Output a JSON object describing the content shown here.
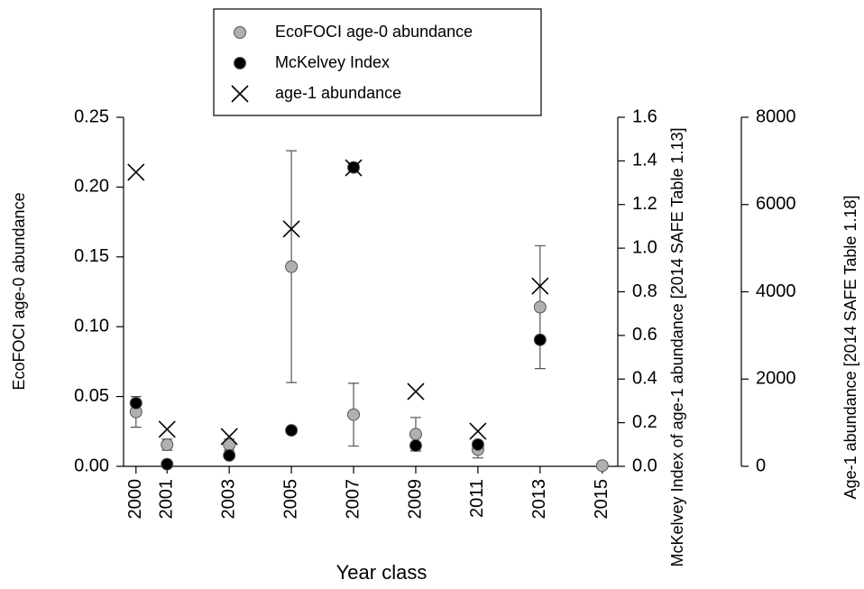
{
  "chart_data": {
    "type": "scatter",
    "xlabel": "Year class",
    "ylabel": "EcoFOCI age-0 abundance",
    "y2label": "McKelvey Index of age-1 abundance [2014 SAFE Table 1.13]",
    "y3label": "Age-1 abundance [2014 SAFE Table 1.18]",
    "x": [
      2000,
      2001,
      2003,
      2005,
      2007,
      2009,
      2011,
      2013,
      2015
    ],
    "xlim": [
      1999.6,
      2015.5
    ],
    "xticks": [
      2000,
      2001,
      2003,
      2005,
      2007,
      2009,
      2011,
      2013,
      2015
    ],
    "ylim": [
      0,
      0.25
    ],
    "yticks": [
      {
        "value": 0,
        "label": "0.00"
      },
      {
        "value": 0.05,
        "label": "0.05"
      },
      {
        "value": 0.1,
        "label": "0.10"
      },
      {
        "value": 0.15,
        "label": "0.15"
      },
      {
        "value": 0.2,
        "label": "0.20"
      },
      {
        "value": 0.25,
        "label": "0.25"
      }
    ],
    "y2lim": [
      0,
      1.6
    ],
    "y2ticks": [
      {
        "value": 0,
        "label": "0.0"
      },
      0.2,
      0.4,
      0.6,
      0.8,
      {
        "value": 1,
        "label": "1.0"
      },
      1.2,
      1.4,
      1.6
    ],
    "y3lim": [
      0,
      8000
    ],
    "y3ticks": [
      0,
      2000,
      4000,
      6000,
      8000
    ],
    "series": [
      {
        "name": "EcoFOCI age-0 abundance",
        "color": "#b0b0b0",
        "marker": "o",
        "values": [
          0.039,
          0.0155,
          0.0155,
          0.143,
          0.037,
          0.023,
          0.012,
          0.114,
          0.0005
        ],
        "errors": [
          0.011,
          0.004,
          0.004,
          0.083,
          0.0225,
          0.012,
          0.006,
          0.044,
          null
        ]
      },
      {
        "name": "McKelvey Index",
        "color": "#000000",
        "marker": "o",
        "axis": "y2",
        "values": [
          0.29,
          0.01,
          0.05,
          0.165,
          1.37,
          0.095,
          0.1,
          0.58,
          null
        ]
      },
      {
        "name": "age-1 abundance",
        "color": "#000000",
        "marker": "x",
        "axis": "y3",
        "values": [
          6740,
          850,
          680,
          5440,
          6840,
          1715,
          805,
          4130,
          null
        ]
      }
    ]
  }
}
